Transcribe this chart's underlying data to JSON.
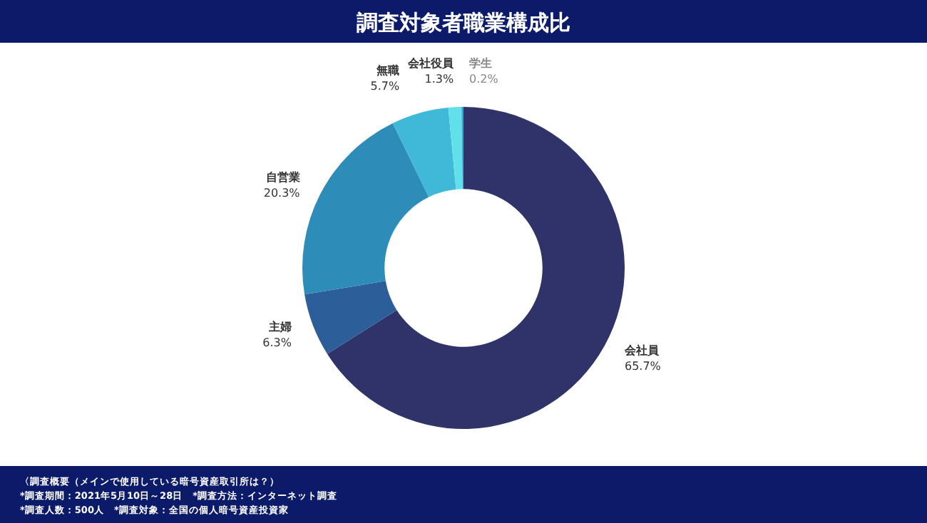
{
  "chart_data": {
    "type": "donut",
    "title": "調査対象者職業構成比",
    "categories": [
      "会社員",
      "主婦",
      "自営業",
      "無職",
      "会社役員",
      "学生"
    ],
    "values": [
      65.7,
      6.3,
      20.3,
      5.7,
      1.3,
      0.2
    ],
    "colors": [
      "#30336a",
      "#2c5e99",
      "#2e8cb9",
      "#40b8d8",
      "#62e0ea",
      "#38a4cf"
    ],
    "value_labels": [
      "65.7%",
      "6.3%",
      "20.3%",
      "5.7%",
      "1.3%",
      "0.2%"
    ],
    "annotations": [
      "〈調査概要（メインで使用している暗号資産取引所は？）",
      "*調査期間：2021年5月10日～28日　*調査方法：インターネット調査",
      "*調査人数：500人　*調査対象：全国の個人暗号資産投資家"
    ]
  }
}
